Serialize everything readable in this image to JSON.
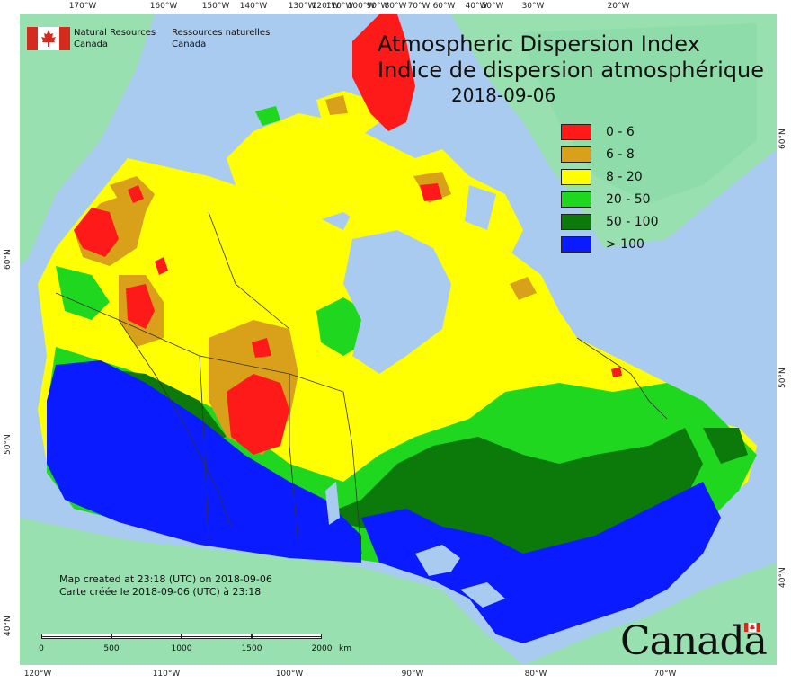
{
  "title": {
    "line1": "Atmospheric Dispersion Index",
    "line2": "Indice de dispersion atmosphérique",
    "date": "2018-09-06"
  },
  "branding": {
    "nrcan_en_1": "Natural Resources",
    "nrcan_en_2": "Canada",
    "nrcan_fr_1": "Ressources naturelles",
    "nrcan_fr_2": "Canada",
    "wordmark": "Canada",
    "flag_icon": "canada-flag-icon"
  },
  "legend": [
    {
      "label": "0 - 6",
      "color": "#ff1a1a"
    },
    {
      "label": "6 - 8",
      "color": "#d9a01a"
    },
    {
      "label": "8 - 20",
      "color": "#ffff00"
    },
    {
      "label": "20 - 50",
      "color": "#1fd71f"
    },
    {
      "label": "50 - 100",
      "color": "#0b7a0b"
    },
    {
      "label": "> 100",
      "color": "#0a1bff"
    }
  ],
  "created": {
    "en": "Map created at 23:18 (UTC) on 2018-09-06",
    "fr": "Carte créée le 2018-09-06 (UTC) à 23:18"
  },
  "scale": {
    "labels": [
      "0",
      "500",
      "1000",
      "1500",
      "2000"
    ],
    "unit": "km"
  },
  "graticule": {
    "top": [
      "170°W",
      "160°W",
      "150°W",
      "140°W",
      "130°W",
      "120°W",
      "110°W",
      "100°W",
      "90°W",
      "80°W",
      "70°W",
      "60°W",
      "50°W",
      "40°W",
      "30°W",
      "20°W"
    ],
    "bottom": [
      "120°W",
      "110°W",
      "100°W",
      "90°W",
      "80°W",
      "70°W"
    ],
    "left": [
      "60°N",
      "50°N",
      "40°N"
    ],
    "right": [
      "60°N",
      "50°N",
      "40°N"
    ]
  },
  "colors": {
    "ocean": "#a9cbef",
    "land_outside": "#98e0b0",
    "boundary": "#333333"
  }
}
